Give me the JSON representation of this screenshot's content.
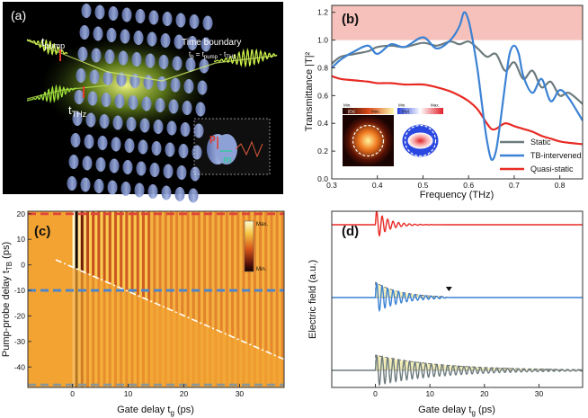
{
  "panels": {
    "a": {
      "label": "(a)",
      "t_pump": "t",
      "t_pump_sub": "pump",
      "t_thz": "t",
      "t_thz_sub": "THz",
      "boundary_title": "Time boundary",
      "boundary_eq_lhs": "t",
      "boundary_eq_lhs_sub": "b",
      "boundary_eq_mid": " = t",
      "boundary_eq_mid_sub": "pump",
      "boundary_eq_rhs": " - t",
      "boundary_eq_rhs_sub": "THz",
      "inset_p": "p",
      "inset_m": "m"
    },
    "b": {
      "label": "(b)",
      "ylabel": "Transmittance |T|²",
      "xlabel": "Frequency (THz)",
      "xticks": [
        "0.3",
        "0.4",
        "0.5",
        "0.6",
        "0.7",
        "0.8"
      ],
      "yticks": [
        "0.0",
        "0.2",
        "0.4",
        "0.6",
        "0.8",
        "1.0",
        "1.2"
      ],
      "inset_ex_title": "|Ex|",
      "inset_hy_title": "|Hy|",
      "inset_min": "Min.",
      "inset_max": "Max."
    },
    "c": {
      "label": "(c)",
      "ylabel": "Pump-probe delay t",
      "ylabel_sub": "TB",
      "ylabel_unit": " (ps)",
      "xlabel": "Gate delay t",
      "xlabel_sub": "g",
      "xlabel_unit": " (ps)",
      "xticks": [
        "0",
        "10",
        "20",
        "30"
      ],
      "yticks": [
        "20",
        "10",
        "0",
        "-10",
        "-20",
        "-30",
        "-40"
      ],
      "cbar_max": "Max.",
      "cbar_min": "Min."
    },
    "d": {
      "label": "(d)",
      "ylabel": "Electric field (a.u.)",
      "xlabel": "Gate delay t",
      "xlabel_sub": "g",
      "xlabel_unit": " (ps)",
      "xticks": [
        "0",
        "10",
        "20",
        "30"
      ]
    }
  },
  "colors": {
    "static": "#6d7b7e",
    "tb": "#3b82d4",
    "quasi": "#e82a24",
    "shade": "#f4b6ae",
    "heat_bg": "#f2a332",
    "dash_red": "#e0453a",
    "dash_blue": "#4a86cf",
    "dash_gray": "#8a9698"
  },
  "chart_data": [
    {
      "id": "b",
      "type": "line",
      "title": "",
      "xlabel": "Frequency (THz)",
      "ylabel": "Transmittance |T|²",
      "xlim": [
        0.3,
        0.85
      ],
      "ylim": [
        0.0,
        1.25
      ],
      "shaded_band": [
        1.0,
        1.25
      ],
      "legend": "lower-right",
      "series": [
        {
          "name": "Static",
          "color": "#6d7b7e",
          "x": [
            0.3,
            0.32,
            0.35,
            0.38,
            0.4,
            0.43,
            0.46,
            0.5,
            0.53,
            0.56,
            0.58,
            0.6,
            0.62,
            0.64,
            0.66,
            0.68,
            0.7,
            0.72,
            0.74,
            0.76,
            0.78,
            0.8,
            0.82,
            0.85
          ],
          "y": [
            0.83,
            0.88,
            0.9,
            0.92,
            0.95,
            0.96,
            0.95,
            0.98,
            0.96,
            0.99,
            0.97,
            0.99,
            0.94,
            0.88,
            0.9,
            0.78,
            0.84,
            0.72,
            0.78,
            0.66,
            0.7,
            0.6,
            0.62,
            0.54
          ]
        },
        {
          "name": "TB-intervened",
          "color": "#3b82d4",
          "x": [
            0.3,
            0.32,
            0.35,
            0.38,
            0.4,
            0.43,
            0.46,
            0.5,
            0.53,
            0.56,
            0.58,
            0.59,
            0.6,
            0.61,
            0.62,
            0.63,
            0.64,
            0.65,
            0.66,
            0.67,
            0.68,
            0.69,
            0.7,
            0.71,
            0.72,
            0.74,
            0.76,
            0.78,
            0.8,
            0.82,
            0.85
          ],
          "y": [
            0.8,
            0.86,
            0.92,
            0.96,
            0.9,
            0.97,
            0.95,
            1.02,
            0.94,
            1.0,
            1.1,
            1.2,
            1.14,
            0.98,
            0.78,
            0.52,
            0.28,
            0.14,
            0.2,
            0.42,
            0.68,
            0.9,
            0.96,
            0.9,
            0.74,
            0.62,
            0.72,
            0.56,
            0.64,
            0.58,
            0.42
          ]
        },
        {
          "name": "Quasi-static",
          "color": "#e82a24",
          "x": [
            0.3,
            0.32,
            0.35,
            0.38,
            0.4,
            0.43,
            0.46,
            0.5,
            0.53,
            0.56,
            0.58,
            0.6,
            0.62,
            0.64,
            0.65,
            0.66,
            0.68,
            0.7,
            0.72,
            0.74,
            0.76,
            0.78,
            0.8,
            0.82,
            0.85
          ],
          "y": [
            0.74,
            0.72,
            0.71,
            0.7,
            0.69,
            0.69,
            0.68,
            0.68,
            0.66,
            0.63,
            0.6,
            0.56,
            0.5,
            0.4,
            0.36,
            0.36,
            0.4,
            0.38,
            0.36,
            0.34,
            0.31,
            0.29,
            0.27,
            0.26,
            0.25
          ]
        }
      ]
    },
    {
      "id": "c",
      "type": "heatmap",
      "title": "",
      "xlabel": "Gate delay t_g (ps)",
      "ylabel": "Pump-probe delay t_TB (ps)",
      "xlim": [
        -8,
        38
      ],
      "ylim": [
        -48,
        21
      ],
      "stripe_period_ps": 1.0,
      "stripe_onset_ps": 0.0,
      "time_boundary_line": {
        "x": [
          -3,
          38
        ],
        "y": [
          2,
          -37
        ]
      },
      "marked_delays": [
        {
          "y": 20,
          "color": "#e0453a"
        },
        {
          "y": -10,
          "color": "#4a86cf"
        },
        {
          "y": -47,
          "color": "#8a9698"
        }
      ],
      "colorbar": [
        "Max.",
        "Min."
      ]
    },
    {
      "id": "d",
      "type": "line",
      "title": "",
      "xlabel": "Gate delay t_g (ps)",
      "ylabel": "Electric field (a.u.)",
      "xlim": [
        -8,
        38
      ],
      "series": [
        {
          "name": "Quasi-static",
          "color": "#e82a24",
          "offset": 2.0,
          "amplitude": 1.0,
          "decay_ps": 2.2,
          "period_ps": 1.0
        },
        {
          "name": "TB-intervened",
          "color": "#3b82d4",
          "offset": 0.0,
          "amplitude": 1.0,
          "decay_ps": 4.5,
          "period_ps": 1.0,
          "cutoff_ps": 12.5,
          "marker_ps": 12.5
        },
        {
          "name": "Static",
          "color": "#6d7b7e",
          "offset": -2.0,
          "amplitude": 1.0,
          "decay_ps": 12.0,
          "period_ps": 1.0
        }
      ]
    }
  ]
}
